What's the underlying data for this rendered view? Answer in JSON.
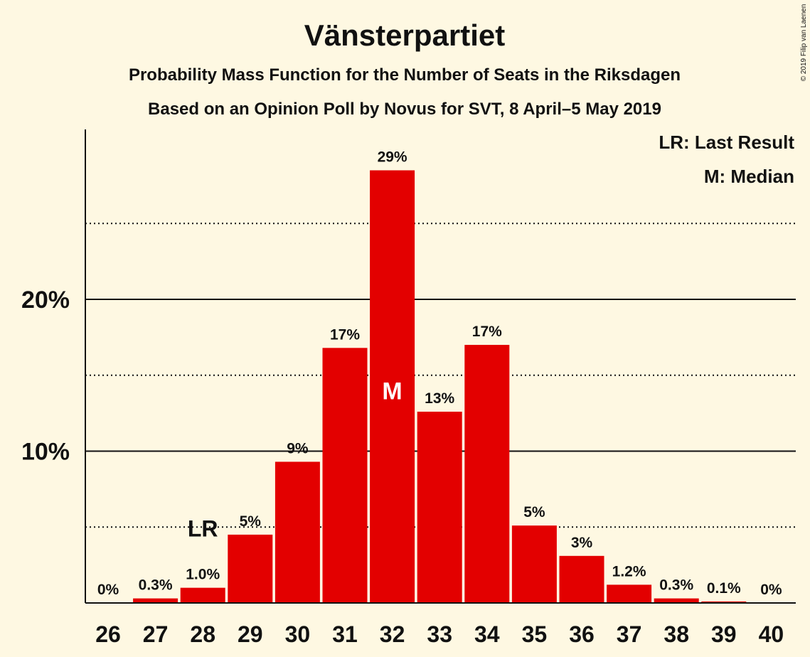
{
  "chart_data": {
    "type": "bar",
    "title": "Vänsterpartiet",
    "subtitle": "Probability Mass Function for the Number of Seats in the Riksdagen",
    "subtitle2": "Based on an Opinion Poll by Novus for SVT, 8 April–5 May 2019",
    "copyright": "© 2019 Filip van Laenen",
    "legend": [
      "LR: Last Result",
      "M: Median"
    ],
    "legend_position": "top-right",
    "categories": [
      "26",
      "27",
      "28",
      "29",
      "30",
      "31",
      "32",
      "33",
      "34",
      "35",
      "36",
      "37",
      "38",
      "39",
      "40"
    ],
    "values": [
      0,
      0.3,
      1.0,
      4.5,
      9.3,
      16.8,
      28.5,
      12.6,
      17.0,
      5.1,
      3.1,
      1.2,
      0.3,
      0.1,
      0
    ],
    "labels": [
      "0%",
      "0.3%",
      "1.0%",
      "5%",
      "9%",
      "17%",
      "29%",
      "13%",
      "17%",
      "5%",
      "3%",
      "1.2%",
      "0.3%",
      "0.1%",
      "0%"
    ],
    "yticks": [
      {
        "value": 10,
        "label": "10%"
      },
      {
        "value": 20,
        "label": "20%"
      }
    ],
    "minor_gridlines": [
      5,
      15,
      25
    ],
    "ylim": [
      0,
      31
    ],
    "last_result": {
      "category": "28",
      "label": "LR"
    },
    "median": {
      "category": "32",
      "label": "M"
    },
    "bar_color": "#e30000",
    "background_color": "#fef8e2"
  }
}
